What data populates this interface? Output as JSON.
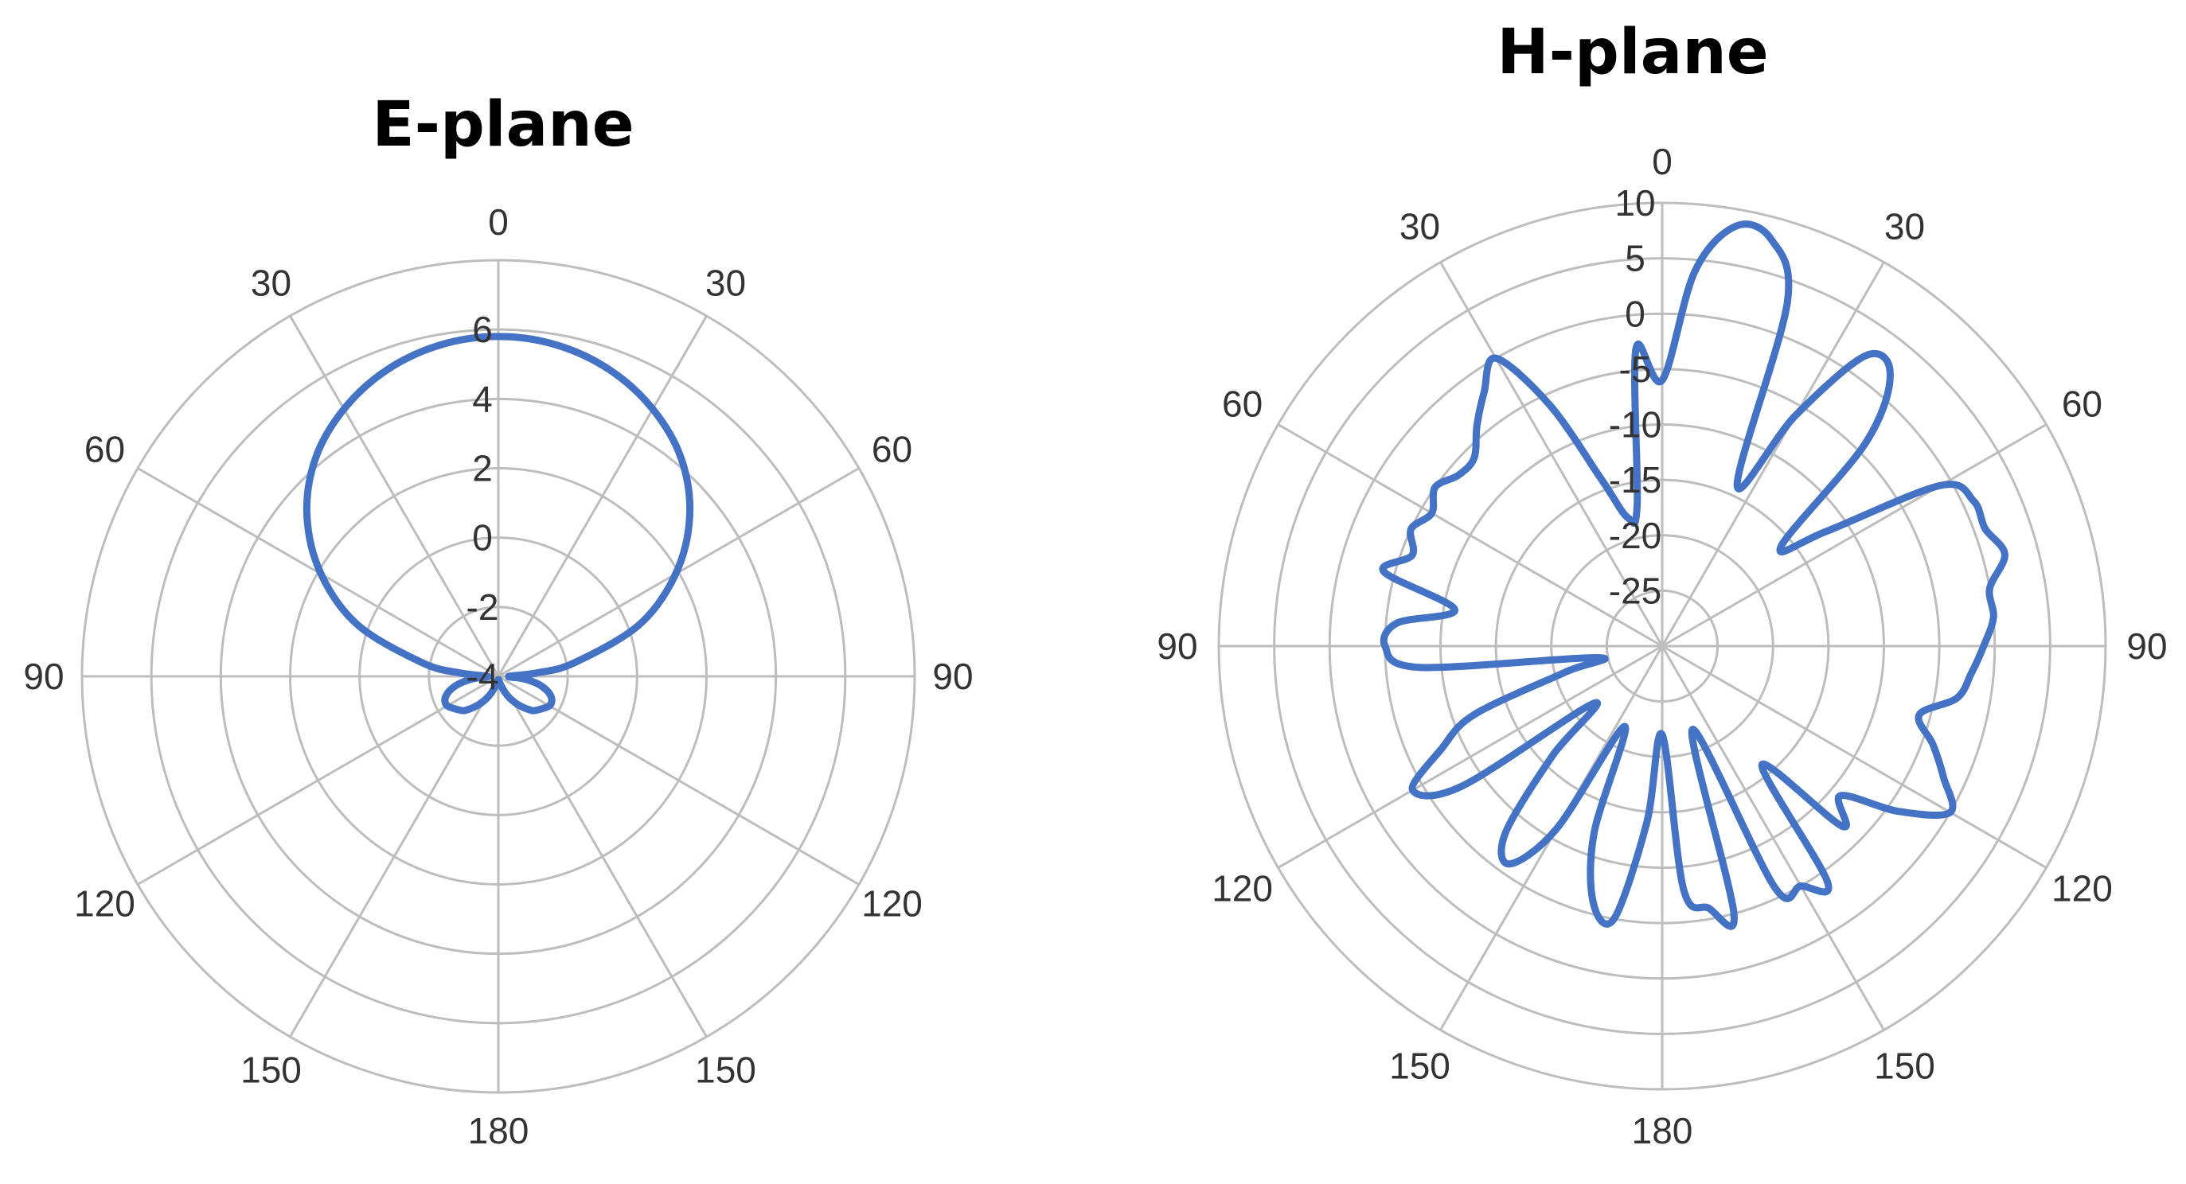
{
  "colors": {
    "series": "#4472C4",
    "grid": "#bdbdbd",
    "text": "#333333"
  },
  "chart_data": [
    {
      "type": "polar-line",
      "title": "E-plane",
      "angle_labels": [
        "0",
        "30",
        "60",
        "90",
        "120",
        "150",
        "180",
        "150",
        "120",
        "90",
        "60",
        "30"
      ],
      "r_tick_labels": [
        "6",
        "4",
        "2",
        "0",
        "-2",
        "-4"
      ],
      "r_ticks": [
        6,
        4,
        2,
        0,
        -2,
        -4
      ],
      "r_range": [
        -4,
        8
      ],
      "num_rings": 6,
      "series": [
        {
          "theta": [
            0,
            10,
            20,
            30,
            40,
            50,
            60,
            70,
            80,
            85,
            90,
            95,
            100,
            105,
            110,
            115,
            120,
            125,
            130,
            135,
            140,
            145,
            150,
            155,
            160,
            165,
            170,
            175,
            180,
            185,
            190,
            195,
            200,
            205,
            210,
            215,
            220,
            225,
            230,
            235,
            240,
            245,
            250,
            255,
            260,
            265,
            270,
            275,
            280,
            290,
            300,
            310,
            320,
            330,
            340,
            350
          ],
          "r": [
            5.8,
            5.7,
            5.4,
            4.9,
            4.2,
            3.2,
            1.9,
            0.3,
            -1.8,
            -2.9,
            -3.7,
            -3.3,
            -2.9,
            -2.6,
            -2.4,
            -2.3,
            -2.3,
            -2.4,
            -2.5,
            -2.6,
            -2.8,
            -3.0,
            -3.2,
            -3.4,
            -3.6,
            -3.75,
            -3.85,
            -3.9,
            -3.9,
            -3.9,
            -3.85,
            -3.75,
            -3.6,
            -3.4,
            -3.2,
            -3.0,
            -2.8,
            -2.6,
            -2.5,
            -2.4,
            -2.3,
            -2.3,
            -2.4,
            -2.6,
            -2.9,
            -3.3,
            -3.7,
            -2.9,
            -1.8,
            0.3,
            1.9,
            3.2,
            4.2,
            4.9,
            5.4,
            5.7
          ]
        }
      ]
    },
    {
      "type": "polar-line",
      "title": "H-plane",
      "angle_labels": [
        "0",
        "30",
        "60",
        "90",
        "120",
        "150",
        "180",
        "150",
        "120",
        "90",
        "60",
        "30"
      ],
      "r_tick_labels": [
        "10",
        "5",
        "0",
        "-5",
        "-10",
        "-15",
        "-20",
        "-25"
      ],
      "r_ticks": [
        10,
        5,
        0,
        -5,
        -10,
        -15,
        -20,
        -25
      ],
      "r_range": [
        -30,
        10
      ],
      "num_rings": 8,
      "series": [
        {
          "theta": [
            0,
            5,
            10,
            15,
            20,
            25,
            30,
            35,
            40,
            45,
            50,
            55,
            60,
            65,
            70,
            75,
            80,
            85,
            90,
            95,
            100,
            105,
            110,
            115,
            120,
            125,
            130,
            135,
            140,
            145,
            150,
            155,
            160,
            165,
            170,
            175,
            180,
            185,
            190,
            195,
            200,
            205,
            210,
            215,
            220,
            225,
            230,
            235,
            240,
            245,
            250,
            255,
            260,
            265,
            270,
            275,
            280,
            285,
            290,
            295,
            300,
            305,
            310,
            315,
            320,
            325,
            330,
            335,
            340,
            345,
            350,
            355
          ],
          "r": [
            -6,
            4,
            8.5,
            8,
            3,
            -14,
            -6,
            2,
            2,
            -4,
            -16,
            -12,
            -1,
            1,
            1,
            2,
            0,
            0,
            -1,
            -2,
            -3,
            -6,
            -4,
            -2,
            0,
            -4,
            -9,
            -7,
            -16,
            -4,
            -5,
            -6,
            -22,
            -5,
            -6,
            -8,
            -22,
            -14,
            -5,
            -6,
            -12,
            -22,
            -11,
            -6,
            -8,
            -16,
            -22,
            -8,
            -4,
            -8,
            -12,
            -21,
            -24,
            -8,
            -5,
            -6,
            -11,
            -4,
            -6,
            -5,
            -6,
            -5,
            -6,
            -6,
            -4,
            -2,
            0,
            -6,
            -14,
            -18,
            -17,
            -3
          ]
        }
      ]
    }
  ]
}
